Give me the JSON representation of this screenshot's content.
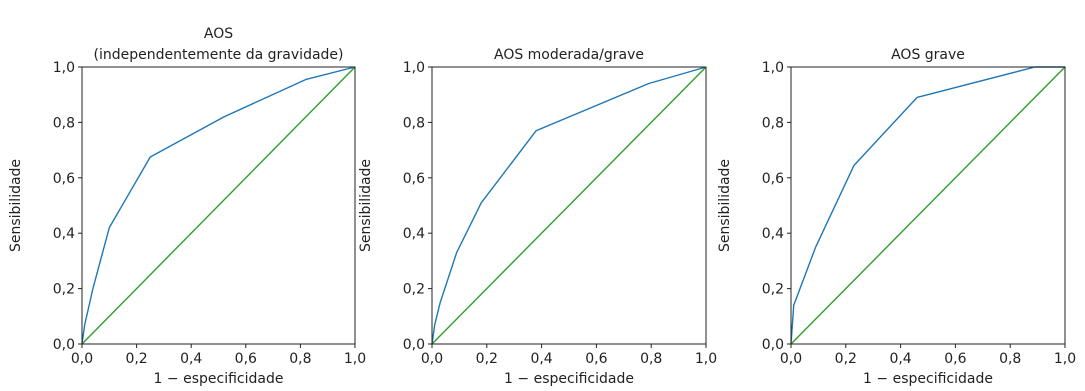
{
  "chart_data": [
    {
      "type": "line",
      "title_lines": [
        "AOS",
        "(independentemente da gravidade)"
      ],
      "xlabel": "1 − especificidade",
      "ylabel": "Sensibilidade",
      "xlim": [
        0,
        1
      ],
      "ylim": [
        0,
        1
      ],
      "xticks": [
        "0,0",
        "0,2",
        "0,4",
        "0,6",
        "0,8",
        "1,0"
      ],
      "yticks": [
        "0,0",
        "0,2",
        "0,4",
        "0,6",
        "0,8",
        "1,0"
      ],
      "grid": false,
      "series": [
        {
          "role": "roc",
          "color": "#1f77b4",
          "x": [
            0,
            0.01,
            0.04,
            0.1,
            0.25,
            0.52,
            0.82,
            1.0
          ],
          "y": [
            0,
            0.07,
            0.2,
            0.42,
            0.675,
            0.82,
            0.955,
            1.0
          ]
        },
        {
          "role": "reference",
          "color": "#2ca02c",
          "x": [
            0,
            1
          ],
          "y": [
            0,
            1
          ]
        }
      ]
    },
    {
      "type": "line",
      "title_lines": [
        "AOS moderada/grave"
      ],
      "xlabel": "1 − especificidade",
      "ylabel": "Sensibilidade",
      "xlim": [
        0,
        1
      ],
      "ylim": [
        0,
        1
      ],
      "xticks": [
        "0,0",
        "0,2",
        "0,4",
        "0,6",
        "0,8",
        "1,0"
      ],
      "yticks": [
        "0,0",
        "0,2",
        "0,4",
        "0,6",
        "0,8",
        "1,0"
      ],
      "grid": false,
      "series": [
        {
          "role": "roc",
          "color": "#1f77b4",
          "x": [
            0,
            0.01,
            0.03,
            0.09,
            0.18,
            0.38,
            0.79,
            1.0
          ],
          "y": [
            0,
            0.07,
            0.15,
            0.33,
            0.51,
            0.77,
            0.94,
            1.0
          ]
        },
        {
          "role": "reference",
          "color": "#2ca02c",
          "x": [
            0,
            1
          ],
          "y": [
            0,
            1
          ]
        }
      ]
    },
    {
      "type": "line",
      "title_lines": [
        "AOS grave"
      ],
      "xlabel": "1 − especificidade",
      "ylabel": "Sensibilidade",
      "xlim": [
        0,
        1
      ],
      "ylim": [
        0,
        1
      ],
      "xticks": [
        "0,0",
        "0,2",
        "0,4",
        "0,6",
        "0,8",
        "1,0"
      ],
      "yticks": [
        "0,0",
        "0,2",
        "0,4",
        "0,6",
        "0,8",
        "1,0"
      ],
      "grid": false,
      "series": [
        {
          "role": "roc",
          "color": "#1f77b4",
          "x": [
            0,
            0.01,
            0.09,
            0.23,
            0.46,
            0.89,
            1.0
          ],
          "y": [
            0,
            0.14,
            0.35,
            0.645,
            0.89,
            1.0,
            1.0
          ]
        },
        {
          "role": "reference",
          "color": "#2ca02c",
          "x": [
            0,
            1
          ],
          "y": [
            0,
            1
          ]
        }
      ]
    }
  ]
}
